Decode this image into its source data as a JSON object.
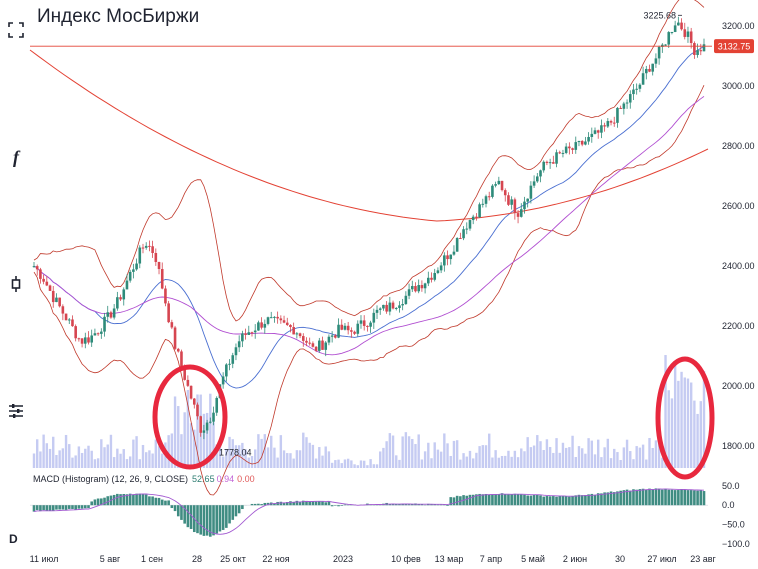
{
  "title": "Индекс МосБиржи",
  "left_tools": {
    "crosshair": "⌗",
    "fx": "f",
    "candles": "▯",
    "indicators": "⫶",
    "d_label": "D"
  },
  "price_axis": {
    "ticks": [
      "3200.00",
      "3000.00",
      "2800.00",
      "2600.00",
      "2400.00",
      "2200.00",
      "2000.00",
      "1800.00"
    ]
  },
  "macd_axis": {
    "ticks": [
      "50.0",
      "0.0",
      "−50.0",
      "−100.0"
    ]
  },
  "date_axis": {
    "labels": [
      "11 июл",
      "5 авг",
      "1 сен",
      "28",
      "25 окт",
      "22 ноя",
      "2023",
      "10 фев",
      "13 мар",
      "7 апр",
      "5 май",
      "2 июн",
      "30",
      "27 июл",
      "23 авг"
    ]
  },
  "last_price_label": "3132.75",
  "high_annotation": "3225.68",
  "low_annotation": "1778.04",
  "macd_legend": {
    "name": "MACD (Histogram) (12, 26, 9, CLOSE)",
    "v1": "52.65",
    "v2": "0.94",
    "v3": "0.00"
  },
  "colors": {
    "up": "#2e8b7a",
    "down": "#d64550",
    "bb": "#c0392b",
    "ma_long": "#e34234",
    "ma_mid": "#b14fd1",
    "ma_short": "#4a6fd1",
    "volume": "#c5cbf2",
    "macd": "#3f8c82",
    "signal": "#a35ad1",
    "marker": "#e8283e"
  },
  "chart_data": {
    "type": "candlestick",
    "title": "Индекс МосБиржи",
    "xlabel": "",
    "ylabel": "",
    "ylim": [
      1720,
      3260
    ],
    "date_ticks": [
      "11 июл",
      "5 авг",
      "1 сен",
      "28",
      "25 окт",
      "22 ноя",
      "2023",
      "10 фев",
      "13 мар",
      "7 апр",
      "5 май",
      "2 июн",
      "30",
      "27 июл",
      "23 авг"
    ],
    "close_path": [
      2400,
      2360,
      2300,
      2250,
      2200,
      2150,
      2160,
      2190,
      2230,
      2280,
      2350,
      2420,
      2480,
      2440,
      2300,
      2150,
      2050,
      1950,
      1850,
      1900,
      2000,
      2080,
      2150,
      2180,
      2200,
      2220,
      2210,
      2200,
      2190,
      2160,
      2120,
      2140,
      2170,
      2190,
      2180,
      2200,
      2220,
      2250,
      2260,
      2280,
      2300,
      2330,
      2350,
      2380,
      2420,
      2460,
      2520,
      2560,
      2600,
      2640,
      2680,
      2620,
      2580,
      2640,
      2700,
      2740,
      2760,
      2780,
      2790,
      2810,
      2830,
      2850,
      2880,
      2920,
      2960,
      3000,
      3060,
      3100,
      3160,
      3220,
      3180,
      3120,
      3132.75
    ],
    "highlights": [
      {
        "name": "low-volume-spike",
        "date": "28"
      },
      {
        "name": "high-volume-spike",
        "date": "27 июл"
      }
    ],
    "last": 3132.75,
    "high": 3225.68,
    "low": 1778.04,
    "macd": {
      "params": "12, 26, 9, CLOSE",
      "values": [
        52.65,
        0.94,
        0.0
      ],
      "ylim": [
        -110,
        70
      ]
    }
  }
}
